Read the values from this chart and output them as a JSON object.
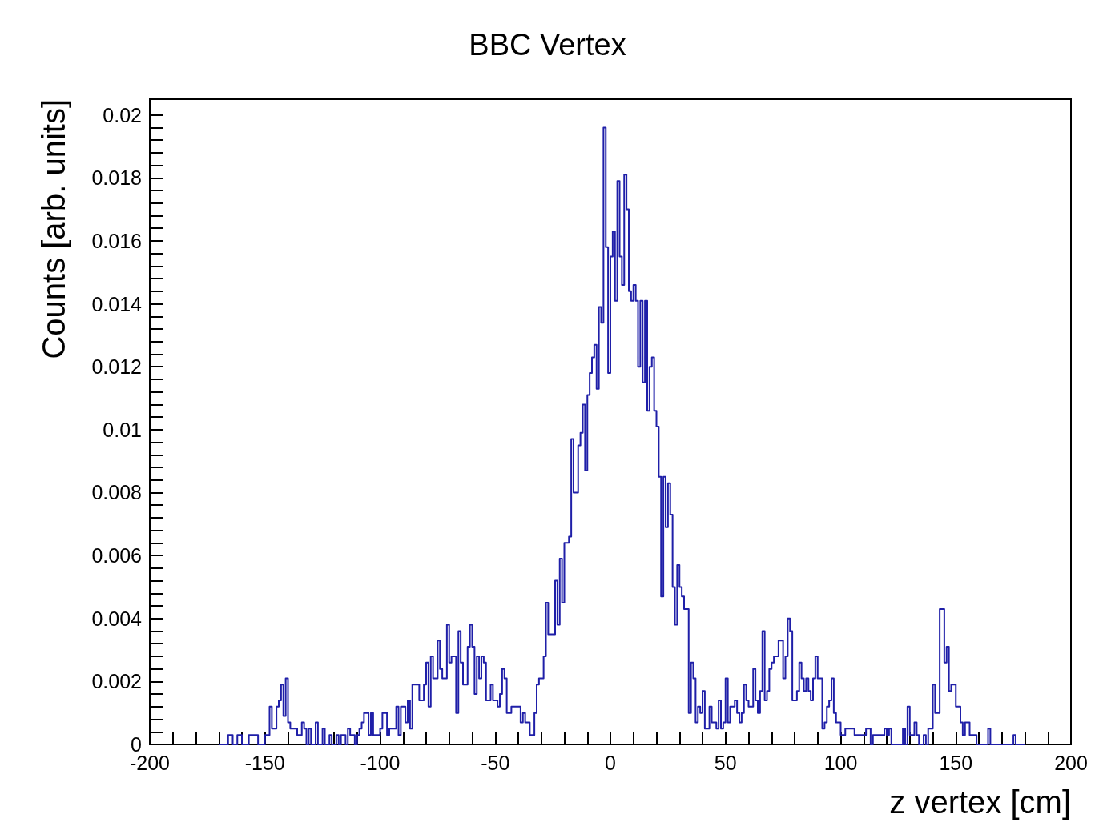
{
  "chart_data": {
    "type": "histogram",
    "title": "BBC Vertex",
    "xlabel": "z vertex [cm]",
    "ylabel": "Counts [arb. units]",
    "color": "#1f1fa8",
    "xlim": [
      -200,
      200
    ],
    "xticks": [
      -200,
      {
        "value": -190,
        "label": null
      },
      {
        "value": -180,
        "label": null
      },
      {
        "value": -170,
        "label": null
      },
      {
        "value": -160,
        "label": null
      },
      -150,
      {
        "value": -140,
        "label": null
      },
      {
        "value": -130,
        "label": null
      },
      {
        "value": -120,
        "label": null
      },
      {
        "value": -110,
        "label": null
      },
      -100,
      {
        "value": -90,
        "label": null
      },
      {
        "value": -80,
        "label": null
      },
      {
        "value": -70,
        "label": null
      },
      {
        "value": -60,
        "label": null
      },
      -50,
      {
        "value": -40,
        "label": null
      },
      {
        "value": -30,
        "label": null
      },
      {
        "value": -20,
        "label": null
      },
      {
        "value": -10,
        "label": null
      },
      0,
      {
        "value": 10,
        "label": null
      },
      {
        "value": 20,
        "label": null
      },
      {
        "value": 30,
        "label": null
      },
      {
        "value": 40,
        "label": null
      },
      50,
      {
        "value": 60,
        "label": null
      },
      {
        "value": 70,
        "label": null
      },
      {
        "value": 80,
        "label": null
      },
      {
        "value": 90,
        "label": null
      },
      100,
      {
        "value": 110,
        "label": null
      },
      {
        "value": 120,
        "label": null
      },
      {
        "value": 130,
        "label": null
      },
      {
        "value": 140,
        "label": null
      },
      150,
      {
        "value": 160,
        "label": null
      },
      {
        "value": 170,
        "label": null
      },
      {
        "value": 180,
        "label": null
      },
      {
        "value": 190,
        "label": null
      },
      200
    ],
    "ylim": [
      0,
      0.0205
    ],
    "yticks": [
      0,
      {
        "value": 0.0004,
        "label": null
      },
      {
        "value": 0.0008,
        "label": null
      },
      {
        "value": 0.0012,
        "label": null
      },
      {
        "value": 0.0016,
        "label": null
      },
      0.002,
      {
        "value": 0.0024,
        "label": null
      },
      {
        "value": 0.0028,
        "label": null
      },
      {
        "value": 0.0032,
        "label": null
      },
      {
        "value": 0.0036,
        "label": null
      },
      0.004,
      {
        "value": 0.0044,
        "label": null
      },
      {
        "value": 0.0048,
        "label": null
      },
      {
        "value": 0.0052,
        "label": null
      },
      {
        "value": 0.0056,
        "label": null
      },
      0.006,
      {
        "value": 0.0064,
        "label": null
      },
      {
        "value": 0.0068,
        "label": null
      },
      {
        "value": 0.0072,
        "label": null
      },
      {
        "value": 0.0076,
        "label": null
      },
      0.008,
      {
        "value": 0.0084,
        "label": null
      },
      {
        "value": 0.0088,
        "label": null
      },
      {
        "value": 0.0092,
        "label": null
      },
      {
        "value": 0.0096,
        "label": null
      },
      0.01,
      {
        "value": 0.0104,
        "label": null
      },
      {
        "value": 0.0108,
        "label": null
      },
      {
        "value": 0.0112,
        "label": null
      },
      {
        "value": 0.0116,
        "label": null
      },
      0.012,
      {
        "value": 0.0124,
        "label": null
      },
      {
        "value": 0.0128,
        "label": null
      },
      {
        "value": 0.0132,
        "label": null
      },
      {
        "value": 0.0136,
        "label": null
      },
      0.014,
      {
        "value": 0.0144,
        "label": null
      },
      {
        "value": 0.0148,
        "label": null
      },
      {
        "value": 0.0152,
        "label": null
      },
      {
        "value": 0.0156,
        "label": null
      },
      0.016,
      {
        "value": 0.0164,
        "label": null
      },
      {
        "value": 0.0168,
        "label": null
      },
      {
        "value": 0.0172,
        "label": null
      },
      {
        "value": 0.0176,
        "label": null
      },
      0.018,
      {
        "value": 0.0184,
        "label": null
      },
      {
        "value": 0.0188,
        "label": null
      },
      {
        "value": 0.0192,
        "label": null
      },
      {
        "value": 0.0196,
        "label": null
      },
      0.02
    ],
    "bins": [
      -170,
      -169,
      -168,
      -167,
      -166,
      -165,
      -164,
      -163,
      -162,
      -161,
      -160,
      -159,
      -158,
      -157,
      -156,
      -155,
      -154,
      -153,
      -152,
      -151,
      -150,
      -149,
      -148,
      -147,
      -146,
      -145,
      -144,
      -143,
      -142,
      -141,
      -140,
      -139,
      -138,
      -137,
      -136,
      -135,
      -134,
      -133,
      -132,
      -131,
      -130,
      -129,
      -128,
      -127,
      -126,
      -125,
      -124,
      -123,
      -122,
      -121,
      -120,
      -119,
      -118,
      -117,
      -116,
      -115,
      -114,
      -113,
      -112,
      -111,
      -110,
      -109,
      -108,
      -107,
      -106,
      -105,
      -104,
      -103,
      -102,
      -101,
      -100,
      -99,
      -98,
      -97,
      -96,
      -95,
      -94,
      -93,
      -92,
      -91,
      -90,
      -89,
      -88,
      -87,
      -86,
      -85,
      -84,
      -83,
      -82,
      -81,
      -80,
      -79,
      -78,
      -77,
      -76,
      -75,
      -74,
      -73,
      -72,
      -71,
      -70,
      -69,
      -68,
      -67,
      -66,
      -65,
      -64,
      -63,
      -62,
      -61,
      -60,
      -59,
      -58,
      -57,
      -56,
      -55,
      -54,
      -53,
      -52,
      -51,
      -50,
      -49,
      -48,
      -47,
      -46,
      -45,
      -44,
      -43,
      -42,
      -41,
      -40,
      -39,
      -38,
      -37,
      -36,
      -35,
      -34,
      -33,
      -32,
      -31,
      -30,
      -29,
      -28,
      -27,
      -26,
      -25,
      -24,
      -23,
      -22,
      -21,
      -20,
      -19,
      -18,
      -17,
      -16,
      -15,
      -14,
      -13,
      -12,
      -11,
      -10,
      -9,
      -8,
      -7,
      -6,
      -5,
      -4,
      -3,
      -2,
      -1,
      0,
      1,
      2,
      3,
      4,
      5,
      6,
      7,
      8,
      9,
      10,
      11,
      12,
      13,
      14,
      15,
      16,
      17,
      18,
      19,
      20,
      21,
      22,
      23,
      24,
      25,
      26,
      27,
      28,
      29,
      30,
      31,
      32,
      33,
      34,
      35,
      36,
      37,
      38,
      39,
      40,
      41,
      42,
      43,
      44,
      45,
      46,
      47,
      48,
      49,
      50,
      51,
      52,
      53,
      54,
      55,
      56,
      57,
      58,
      59,
      60,
      61,
      62,
      63,
      64,
      65,
      66,
      67,
      68,
      69,
      70,
      71,
      72,
      73,
      74,
      75,
      76,
      77,
      78,
      79,
      80,
      81,
      82,
      83,
      84,
      85,
      86,
      87,
      88,
      89,
      90,
      91,
      92,
      93,
      94,
      95,
      96,
      97,
      98,
      99,
      100,
      101,
      102,
      103,
      104,
      105,
      106,
      107,
      108,
      109,
      110,
      111,
      112,
      113,
      114,
      115,
      116,
      117,
      118,
      119,
      120,
      121,
      122,
      123,
      124,
      125,
      126,
      127,
      128,
      129,
      130,
      131,
      132,
      133,
      134,
      135,
      136,
      137,
      138,
      139,
      140,
      141,
      142,
      143,
      144,
      145,
      146,
      147,
      148,
      149,
      150,
      151,
      152,
      153,
      154,
      155,
      156,
      157,
      158,
      159,
      160,
      161,
      162,
      163,
      164,
      165,
      166,
      167,
      168,
      169,
      170,
      171,
      172,
      173,
      174,
      175,
      176,
      177,
      178,
      179,
      180
    ],
    "values": [
      0,
      0,
      0,
      0,
      0.0003,
      0.0003,
      0,
      0,
      0.0003,
      0.0003,
      0,
      0,
      0,
      0.0003,
      0.0003,
      0.0003,
      0.0003,
      0,
      0,
      0,
      0.0003,
      0.0003,
      0.0012,
      0.0005,
      0.0005,
      0.0012,
      0.0014,
      0.0019,
      0.0009,
      0.0021,
      0.0007,
      0.0005,
      0.0005,
      0.0005,
      0.0003,
      0.0003,
      0.0007,
      0.0005,
      0,
      0.0005,
      0,
      0,
      0.0007,
      0,
      0,
      0.0005,
      0,
      0,
      0.0003,
      0,
      0,
      0.0003,
      0,
      0.0003,
      0.0003,
      0,
      0.0005,
      0.0003,
      0.0003,
      0,
      0.0003,
      0.0005,
      0.0007,
      0.001,
      0.001,
      0.0003,
      0.001,
      0.0003,
      0.0003,
      0.0003,
      0.0005,
      0.001,
      0.001,
      0.0003,
      0.0005,
      0.0005,
      0.0005,
      0.0012,
      0.0003,
      0.0012,
      0.0012,
      0.0007,
      0.0014,
      0.0005,
      0.0019,
      0.0019,
      0.0019,
      0.0014,
      0.0014,
      0.0019,
      0.0026,
      0.0012,
      0.0028,
      0.0021,
      0.0021,
      0.0033,
      0.0024,
      0.0021,
      0.0021,
      0.0038,
      0.0026,
      0.0028,
      0.0028,
      0.001,
      0.0036,
      0.0026,
      0.0019,
      0.0019,
      0.0031,
      0.0038,
      0.0031,
      0.0016,
      0.0028,
      0.0021,
      0.0028,
      0.0026,
      0.0014,
      0.0014,
      0.0019,
      0.0014,
      0.0014,
      0.0012,
      0.0016,
      0.0024,
      0.0021,
      0.001,
      0.001,
      0.0012,
      0.0012,
      0.0012,
      0.0012,
      0.0007,
      0.001,
      0.0007,
      0.0007,
      0.0003,
      0.0003,
      0.001,
      0.0019,
      0.0021,
      0.0021,
      0.0028,
      0.0045,
      0.0035,
      0.0035,
      0.0035,
      0.0052,
      0.0038,
      0.0059,
      0.0045,
      0.0064,
      0.0064,
      0.0066,
      0.0097,
      0.008,
      0.008,
      0.0095,
      0.0099,
      0.0108,
      0.0087,
      0.0111,
      0.0118,
      0.0123,
      0.0127,
      0.0113,
      0.0139,
      0.0134,
      0.0196,
      0.0158,
      0.0118,
      0.0155,
      0.0163,
      0.0141,
      0.0179,
      0.0155,
      0.0146,
      0.0181,
      0.017,
      0.0144,
      0.0141,
      0.0146,
      0.0141,
      0.012,
      0.0141,
      0.0115,
      0.0141,
      0.0106,
      0.012,
      0.0123,
      0.0106,
      0.0101,
      0.0085,
      0.0047,
      0.0085,
      0.0069,
      0.0083,
      0.0073,
      0.005,
      0.0038,
      0.0057,
      0.005,
      0.0047,
      0.0043,
      0.0043,
      0.001,
      0.0026,
      0.0021,
      0.0007,
      0.0012,
      0.001,
      0.0017,
      0.0005,
      0.0005,
      0.0012,
      0.0007,
      0.0007,
      0.0005,
      0.0014,
      0.0005,
      0.0007,
      0.0021,
      0.0007,
      0.0012,
      0.0012,
      0.0014,
      0.001,
      0.0007,
      0.001,
      0.0019,
      0.0014,
      0.0012,
      0.0012,
      0.0024,
      0.0014,
      0.001,
      0.0017,
      0.0036,
      0.0014,
      0.0017,
      0.0024,
      0.0026,
      0.0028,
      0.0028,
      0.0033,
      0.0033,
      0.0021,
      0.0028,
      0.004,
      0.0036,
      0.0014,
      0.0014,
      0.0017,
      0.0026,
      0.0021,
      0.0017,
      0.0021,
      0.0017,
      0.0014,
      0.0021,
      0.0028,
      0.0021,
      0.0021,
      0.0005,
      0.0007,
      0.0012,
      0.0014,
      0.0021,
      0.001,
      0.0007,
      0.0007,
      0.0003,
      0.0003,
      0.0005,
      0.0005,
      0.0005,
      0.0005,
      0.0003,
      0.0003,
      0.0003,
      0.0003,
      0.0003,
      0.0005,
      0.0005,
      0,
      0.0003,
      0.0003,
      0.0003,
      0.0003,
      0.0003,
      0.0005,
      0.0003,
      0.0005,
      0,
      0,
      0,
      0,
      0,
      0.0005,
      0,
      0.0012,
      0.0003,
      0.0003,
      0.0007,
      0.0003,
      0,
      0,
      0.0003,
      0,
      0.0005,
      0.0005,
      0.0019,
      0.001,
      0.001,
      0.0043,
      0.0043,
      0.0026,
      0.0031,
      0.0017,
      0.0019,
      0.0019,
      0.0012,
      0.0012,
      0.0007,
      0.0003,
      0.0007,
      0.0007,
      0.0003,
      0.0003,
      0.0003,
      0,
      0,
      0,
      0,
      0,
      0.0005,
      0,
      0,
      0,
      0,
      0,
      0,
      0,
      0,
      0,
      0,
      0.0003,
      0,
      0,
      0,
      0
    ]
  }
}
